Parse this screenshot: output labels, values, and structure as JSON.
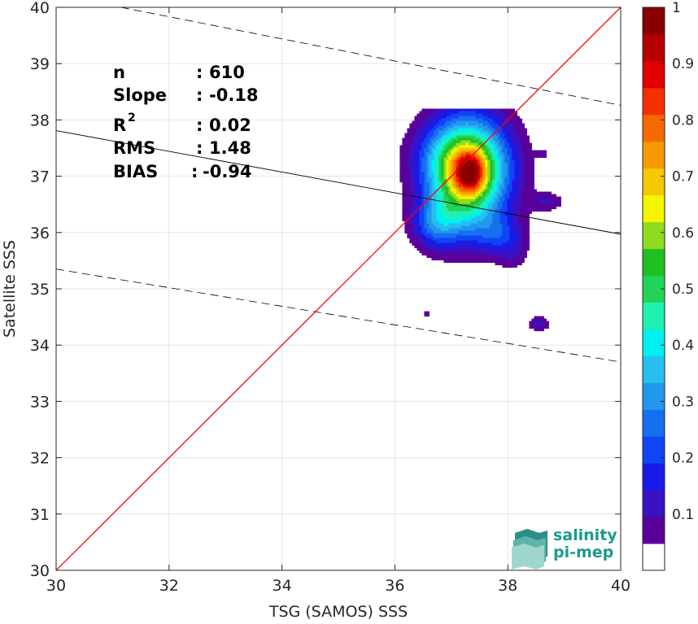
{
  "chart_data": {
    "type": "heatmap",
    "title": "",
    "xlabel": "TSG (SAMOS) SSS",
    "ylabel": "Satellite SSS",
    "xlim": [
      30,
      40
    ],
    "ylim": [
      30,
      40
    ],
    "x_ticks": [
      "30",
      "32",
      "34",
      "36",
      "38",
      "40"
    ],
    "y_ticks": [
      "30",
      "31",
      "32",
      "33",
      "34",
      "35",
      "36",
      "37",
      "38",
      "39",
      "40"
    ],
    "grid": true,
    "stats": [
      {
        "key": "n",
        "sep": ":",
        "value": "610"
      },
      {
        "key": "Slope",
        "sep": ":",
        "value": "-0.18"
      },
      {
        "key": "R",
        "sup": "2",
        "sep": ":",
        "value": "0.02"
      },
      {
        "key": "RMS",
        "sep": ":",
        "value": "1.48"
      },
      {
        "key": "BIAS",
        "sep": ":",
        "value": "-0.94"
      }
    ],
    "one_to_one_line": {
      "x": [
        30,
        40
      ],
      "y": [
        30,
        40
      ],
      "color": "#ff0000"
    },
    "regression_line": {
      "x": [
        30,
        40
      ],
      "y": [
        37.81,
        35.97
      ],
      "color": "#000000"
    },
    "confidence_bounds": [
      {
        "x": [
          31.15,
          40
        ],
        "y": [
          40,
          38.26
        ]
      },
      {
        "x": [
          30,
          40
        ],
        "y": [
          35.35,
          33.7
        ]
      }
    ],
    "density_peaks": [
      {
        "x": 37.31,
        "y": 37.1,
        "sx": 0.5,
        "sy": 0.65,
        "amp": 0.7
      },
      {
        "x": 37.33,
        "y": 37.06,
        "sx": 0.18,
        "sy": 0.24,
        "amp": 0.35
      },
      {
        "x": 36.95,
        "y": 37.35,
        "sx": 0.45,
        "sy": 0.4,
        "amp": 0.12
      },
      {
        "x": 36.7,
        "y": 36.15,
        "sx": 0.28,
        "sy": 0.3,
        "amp": 0.2
      },
      {
        "x": 37.1,
        "y": 36.35,
        "sx": 0.35,
        "sy": 0.45,
        "amp": 0.1
      },
      {
        "x": 37.85,
        "y": 35.95,
        "sx": 0.3,
        "sy": 0.25,
        "amp": 0.16
      },
      {
        "x": 38.1,
        "y": 35.6,
        "sx": 0.18,
        "sy": 0.22,
        "amp": 0.06
      },
      {
        "x": 38.7,
        "y": 36.55,
        "sx": 0.2,
        "sy": 0.12,
        "amp": 0.1
      },
      {
        "x": 38.6,
        "y": 37.4,
        "sx": 0.08,
        "sy": 0.06,
        "amp": 0.06
      },
      {
        "x": 38.55,
        "y": 34.38,
        "sx": 0.13,
        "sy": 0.1,
        "amp": 0.12
      },
      {
        "x": 36.57,
        "y": 34.55,
        "sx": 0.07,
        "sy": 0.06,
        "amp": 0.07
      }
    ],
    "contour_levels": [
      0.05,
      0.1,
      0.15,
      0.2,
      0.25,
      0.3,
      0.35,
      0.4,
      0.45,
      0.5,
      0.55,
      0.6,
      0.65,
      0.7,
      0.75,
      0.8,
      0.85,
      0.9,
      0.95,
      1.0
    ],
    "colorbar": {
      "range": [
        0,
        1
      ],
      "ticks": [
        "0.1",
        "0.2",
        "0.3",
        "0.4",
        "0.5",
        "0.6",
        "0.7",
        "0.8",
        "0.9",
        "1"
      ],
      "colors": [
        "#ffffff",
        "#5a009a",
        "#3a12c4",
        "#1a1ae8",
        "#1045f5",
        "#1570f0",
        "#2198ee",
        "#25bff0",
        "#00f0f0",
        "#20f0b0",
        "#22d35a",
        "#20c020",
        "#8fdc20",
        "#f5f500",
        "#f5c800",
        "#f59a00",
        "#f56a00",
        "#f53000",
        "#e20000",
        "#b50000",
        "#8a0000"
      ]
    }
  },
  "logo": {
    "line1": "salinity",
    "line2": "pi-mep"
  }
}
